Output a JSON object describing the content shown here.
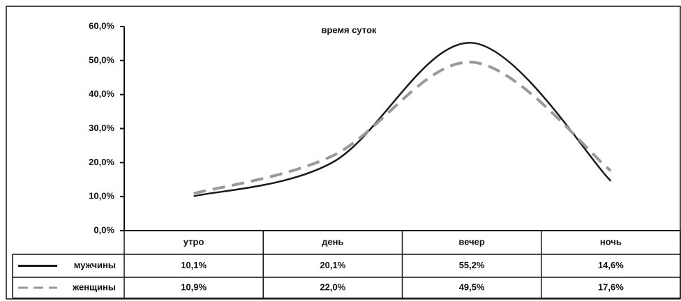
{
  "chart_data": {
    "type": "line",
    "title": "время суток",
    "categories": [
      "утро",
      "день",
      "вечер",
      "ночь"
    ],
    "series": [
      {
        "name": "мужчины",
        "color": "#1a1a1a",
        "dashed": false,
        "values": [
          10.1,
          20.1,
          55.2,
          14.6
        ],
        "value_labels": [
          "10,1%",
          "20,1%",
          "55,2%",
          "14,6%"
        ]
      },
      {
        "name": "женщины",
        "color": "#999999",
        "dashed": true,
        "values": [
          10.9,
          22.0,
          49.5,
          17.6
        ],
        "value_labels": [
          "10,9%",
          "22,0%",
          "49,5%",
          "17,6%"
        ]
      }
    ],
    "ylim": [
      0,
      60
    ],
    "yticks": [
      {
        "value": 0,
        "label": "0,0%"
      },
      {
        "value": 10,
        "label": "10,0%"
      },
      {
        "value": 20,
        "label": "20,0%"
      },
      {
        "value": 30,
        "label": "30,0%"
      },
      {
        "value": 40,
        "label": "40,0%"
      },
      {
        "value": 50,
        "label": "50,0%"
      },
      {
        "value": 60,
        "label": "60,0%"
      }
    ],
    "smooth": true
  }
}
